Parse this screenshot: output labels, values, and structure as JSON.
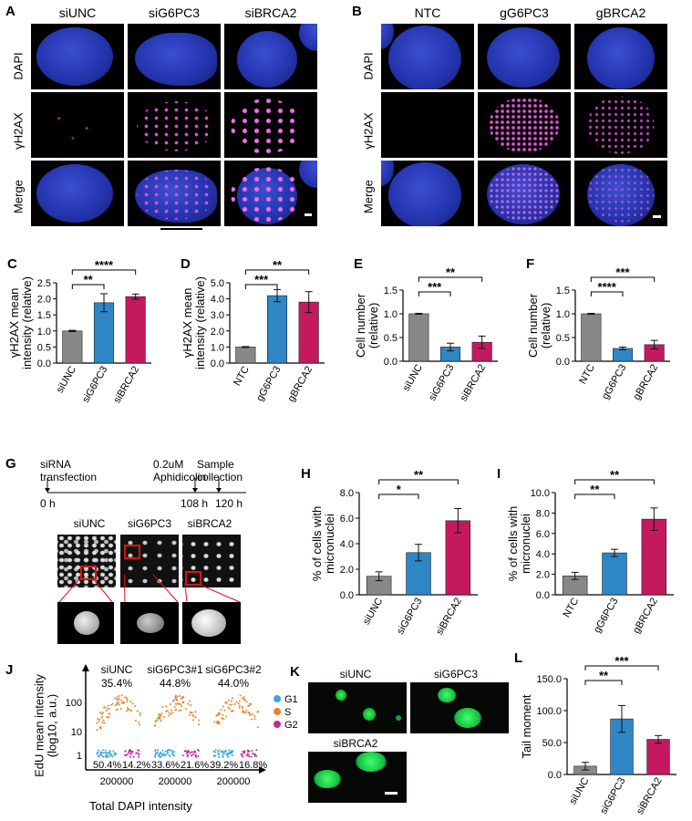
{
  "panels": {
    "A": {
      "label": "A",
      "columns": [
        "siUNC",
        "siG6PC3",
        "siBRCA2"
      ],
      "rows": [
        "DAPI",
        "γH2AX",
        "Merge"
      ]
    },
    "B": {
      "label": "B",
      "columns": [
        "NTC",
        "gG6PC3",
        "gBRCA2"
      ],
      "rows": [
        "DAPI",
        "γH2AX",
        "Merge"
      ]
    },
    "G": {
      "label": "G",
      "timeline": {
        "events": [
          "siRNA\ntransfection",
          "0.2uM\nAphidicolin",
          "Sample\ncollection"
        ],
        "ticks": [
          "0 h",
          "108 h",
          "120 h"
        ]
      },
      "columns": [
        "siUNC",
        "siG6PC3",
        "siBRCA2"
      ]
    },
    "J": {
      "label": "J",
      "ylabel": "EdU mean intensity",
      "ylabel2": "(log10, a.u.)",
      "xlabel": "Total DAPI intensity",
      "yticks": [
        "100",
        "10",
        "1"
      ],
      "xtick": "200000",
      "groups": [
        {
          "name": "siUNC",
          "s": "35.4%",
          "g1": "50.4%",
          "g2": "14.2%"
        },
        {
          "name": "siG6PC3#1",
          "s": "44.8%",
          "g1": "33.6%",
          "g2": "21.6%"
        },
        {
          "name": "siG6PC3#2",
          "s": "44.0%",
          "g1": "39.2%",
          "g2": "16.8%"
        }
      ],
      "legend": [
        {
          "name": "G1",
          "color": "#3ea7e0"
        },
        {
          "name": "S",
          "color": "#e8822a"
        },
        {
          "name": "G2",
          "color": "#c2279a"
        }
      ]
    },
    "K": {
      "label": "K",
      "columns": [
        "siUNC",
        "siG6PC3",
        "siBRCA2"
      ]
    }
  },
  "chart_data": [
    {
      "id": "C",
      "label": "C",
      "type": "bar",
      "categories": [
        "siUNC",
        "siG6PC3",
        "siBRCA2"
      ],
      "values": [
        1.0,
        1.88,
        2.07
      ],
      "errors": [
        0.02,
        0.28,
        0.08
      ],
      "ylabel": "γH2AX mean",
      "ylabel2": "intensity (relative)",
      "ylim": [
        0,
        2.5
      ],
      "yticks": [
        "0.0",
        "0.5",
        "1.0",
        "1.5",
        "2.0",
        "2.5"
      ],
      "sig": [
        {
          "from": 0,
          "to": 1,
          "text": "**"
        },
        {
          "from": 0,
          "to": 2,
          "text": "****"
        }
      ]
    },
    {
      "id": "D",
      "label": "D",
      "type": "bar",
      "categories": [
        "NTC",
        "gG6PC3",
        "gBRCA2"
      ],
      "values": [
        1.0,
        4.2,
        3.8
      ],
      "errors": [
        0.03,
        0.38,
        0.65
      ],
      "ylabel": "γH2AX mean",
      "ylabel2": "intensity (relative)",
      "ylim": [
        0,
        5.0
      ],
      "yticks": [
        "0.0",
        "1.0",
        "2.0",
        "3.0",
        "4.0",
        "5.0"
      ],
      "sig": [
        {
          "from": 0,
          "to": 1,
          "text": "***"
        },
        {
          "from": 0,
          "to": 2,
          "text": "**"
        }
      ]
    },
    {
      "id": "E",
      "label": "E",
      "type": "bar",
      "categories": [
        "siUNC",
        "siG6PC3",
        "siBRCA2"
      ],
      "values": [
        1.0,
        0.3,
        0.4
      ],
      "errors": [
        0.01,
        0.08,
        0.13
      ],
      "ylabel": "Cell number",
      "ylabel2": "(relative)",
      "ylim": [
        0,
        1.5
      ],
      "yticks": [
        "0.0",
        "0.5",
        "1.0",
        "1.5"
      ],
      "sig": [
        {
          "from": 0,
          "to": 1,
          "text": "***"
        },
        {
          "from": 0,
          "to": 2,
          "text": "**"
        }
      ]
    },
    {
      "id": "F",
      "label": "F",
      "type": "bar",
      "categories": [
        "NTC",
        "gG6PC3",
        "gBRCA2"
      ],
      "values": [
        1.0,
        0.27,
        0.35
      ],
      "errors": [
        0.01,
        0.03,
        0.09
      ],
      "ylabel": "Cell number",
      "ylabel2": "(relative)",
      "ylim": [
        0,
        1.5
      ],
      "yticks": [
        "0.0",
        "0.5",
        "1.0",
        "1.5"
      ],
      "sig": [
        {
          "from": 0,
          "to": 1,
          "text": "****"
        },
        {
          "from": 0,
          "to": 2,
          "text": "***"
        }
      ]
    },
    {
      "id": "H",
      "label": "H",
      "type": "bar",
      "categories": [
        "siUNC",
        "siG6PC3",
        "siBRCA2"
      ],
      "values": [
        1.45,
        3.3,
        5.8
      ],
      "errors": [
        0.35,
        0.65,
        0.95
      ],
      "ylabel": "% of cells with",
      "ylabel2": "micronuclei",
      "ylim": [
        0,
        8.0
      ],
      "yticks": [
        "0.0",
        "2.0",
        "4.0",
        "6.0",
        "8.0"
      ],
      "sig": [
        {
          "from": 0,
          "to": 1,
          "text": "*"
        },
        {
          "from": 0,
          "to": 2,
          "text": "**"
        }
      ]
    },
    {
      "id": "I",
      "label": "I",
      "type": "bar",
      "categories": [
        "NTC",
        "gG6PC3",
        "gBRCA2"
      ],
      "values": [
        1.85,
        4.1,
        7.4
      ],
      "errors": [
        0.35,
        0.35,
        1.1
      ],
      "ylabel": "% of cells with",
      "ylabel2": "micronuclei",
      "ylim": [
        0,
        10.0
      ],
      "yticks": [
        "0.0",
        "2.0",
        "4.0",
        "6.0",
        "8.0",
        "10.0"
      ],
      "sig": [
        {
          "from": 0,
          "to": 1,
          "text": "**"
        },
        {
          "from": 0,
          "to": 2,
          "text": "**"
        }
      ]
    },
    {
      "id": "L",
      "label": "L",
      "type": "bar",
      "categories": [
        "siUNC",
        "siG6PC3",
        "siBRCA2"
      ],
      "values": [
        13,
        87,
        55
      ],
      "errors": [
        6,
        21,
        6
      ],
      "ylabel": "Tail moment",
      "ylabel2": "",
      "ylim": [
        0,
        150
      ],
      "yticks": [
        "0.0",
        "50.0",
        "100.0",
        "150.0"
      ],
      "sig": [
        {
          "from": 0,
          "to": 1,
          "text": "**"
        },
        {
          "from": 0,
          "to": 2,
          "text": "***"
        }
      ]
    }
  ],
  "colors": {
    "bars": [
      "#888888",
      "#2f86c5",
      "#c4195f"
    ]
  }
}
